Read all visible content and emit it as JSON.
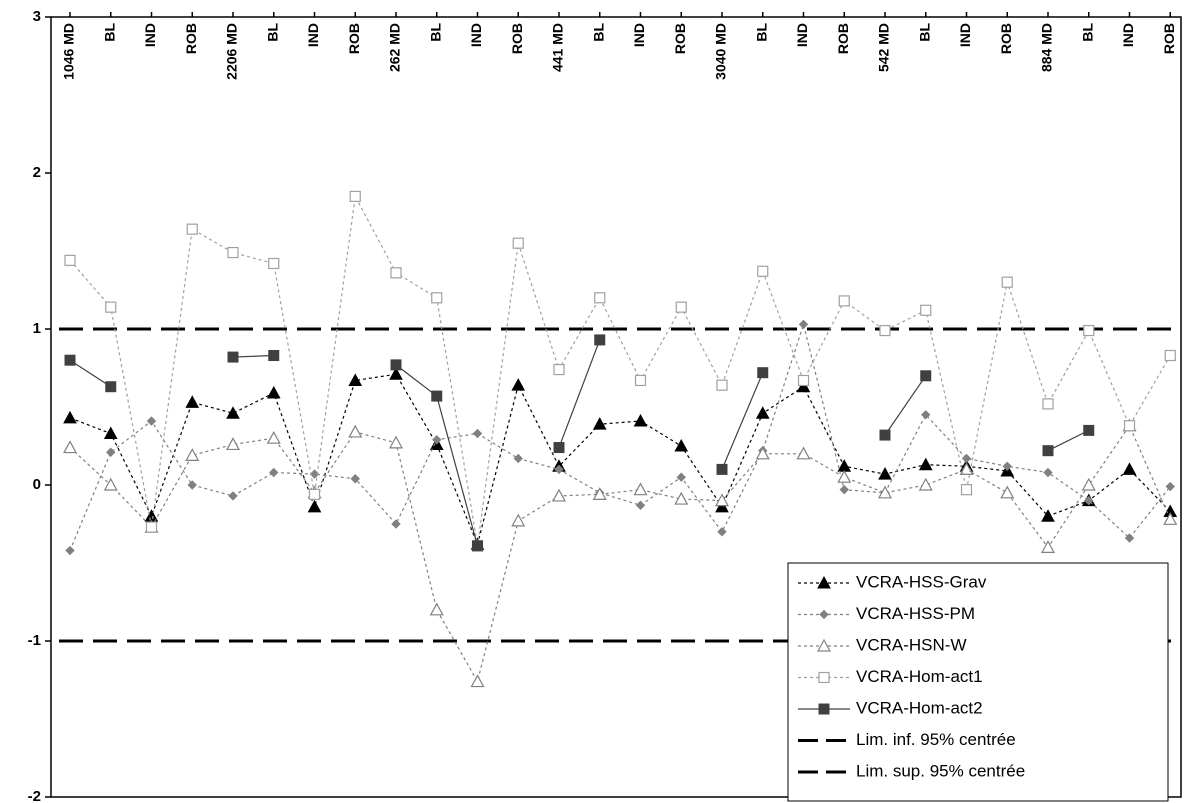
{
  "chart_data": {
    "type": "line",
    "title": "",
    "xlabel": "",
    "ylabel": "",
    "ylim": [
      -2,
      3
    ],
    "yticks": [
      "3",
      "2",
      "1",
      "0",
      "-1",
      "-2"
    ],
    "grid": false,
    "legend_position": "bottom-right",
    "categories": [
      "1046 MD",
      "BL",
      "IND",
      "ROB",
      "2206 MD",
      "BL",
      "IND",
      "ROB",
      "262 MD",
      "BL",
      "IND",
      "ROB",
      "441 MD",
      "BL",
      "IND",
      "ROB",
      "3040 MD",
      "BL",
      "IND",
      "ROB",
      "542 MD",
      "BL",
      "IND",
      "ROB",
      "884 MD",
      "BL",
      "IND",
      "ROB"
    ],
    "series": [
      {
        "name": "VCRA-HSS-Grav",
        "color": "#000000",
        "dash": "3,3",
        "marker": "triangle-filled",
        "values": [
          0.43,
          0.33,
          -0.2,
          0.53,
          0.46,
          0.59,
          -0.14,
          0.67,
          0.71,
          0.26,
          -0.38,
          0.64,
          0.12,
          0.39,
          0.41,
          0.25,
          -0.14,
          0.46,
          0.63,
          0.12,
          0.07,
          0.13,
          0.12,
          0.09,
          -0.2,
          -0.1,
          0.1,
          -0.17
        ]
      },
      {
        "name": "VCRA-HSS-PM",
        "color": "#808080",
        "dash": "3,3",
        "marker": "diamond-filled",
        "values": [
          -0.42,
          0.21,
          0.41,
          0.0,
          -0.07,
          0.08,
          0.07,
          0.04,
          -0.25,
          0.29,
          0.33,
          0.17,
          0.1,
          -0.05,
          -0.13,
          0.05,
          -0.3,
          0.22,
          1.03,
          -0.03,
          -0.05,
          0.45,
          0.17,
          0.12,
          0.08,
          -0.1,
          -0.34,
          -0.01
        ]
      },
      {
        "name": "VCRA-HSN-W",
        "color": "#808080",
        "dash": "3,3",
        "marker": "triangle-open",
        "values": [
          0.24,
          0.0,
          -0.27,
          0.19,
          0.26,
          0.3,
          -0.05,
          0.34,
          0.27,
          -0.8,
          -1.26,
          -0.23,
          -0.07,
          -0.06,
          -0.03,
          -0.09,
          -0.1,
          0.2,
          0.2,
          0.05,
          -0.05,
          0.0,
          0.1,
          -0.05,
          -0.4,
          0.0,
          0.38,
          -0.22
        ]
      },
      {
        "name": "VCRA-Hom-act1",
        "color": "#a0a0a0",
        "dash": "3,3",
        "marker": "square-open",
        "values": [
          1.44,
          1.14,
          -0.27,
          1.64,
          1.49,
          1.42,
          -0.06,
          1.85,
          1.36,
          1.2,
          -0.39,
          1.55,
          0.74,
          1.2,
          0.67,
          1.14,
          0.64,
          1.37,
          0.67,
          1.18,
          0.99,
          1.12,
          -0.03,
          1.3,
          0.52,
          0.99,
          0.38,
          0.83
        ]
      },
      {
        "name": "VCRA-Hom-act2",
        "color": "#404040",
        "dash": "",
        "marker": "square-filled",
        "values": [
          0.8,
          0.63,
          null,
          null,
          0.82,
          0.83,
          null,
          null,
          0.77,
          0.57,
          -0.39,
          null,
          0.24,
          0.93,
          null,
          null,
          0.1,
          0.72,
          null,
          null,
          0.32,
          0.7,
          null,
          null,
          0.22,
          0.35,
          null,
          null
        ]
      },
      {
        "name": "Lim. inf. 95% centrée",
        "color": "#000000",
        "dash": "24,10",
        "marker": "none",
        "constant": -1
      },
      {
        "name": "Lim. sup. 95% centrée",
        "color": "#000000",
        "dash": "24,10",
        "marker": "none",
        "constant": 1
      }
    ]
  }
}
